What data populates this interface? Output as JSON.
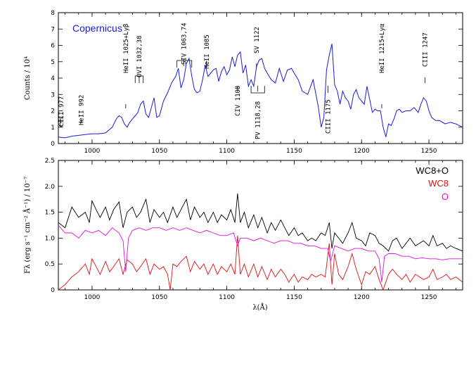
{
  "chart_data": [
    {
      "type": "line",
      "title": "",
      "panel_label": "Copernicus",
      "ylabel": "Counts / 10⁴",
      "xlabel": "",
      "xlim": [
        975,
        1275
      ],
      "ylim": [
        0,
        8
      ],
      "x_ticks": [
        1000,
        1050,
        1100,
        1150,
        1200,
        1250
      ],
      "y_ticks": [
        0,
        1,
        2,
        3,
        4,
        5,
        6,
        7,
        8
      ],
      "x_tick_labels": [
        "1000",
        "1050",
        "1100",
        "1150",
        "1200",
        "1250"
      ],
      "y_tick_labels": [
        "0",
        "1",
        "2",
        "3",
        "4",
        "5",
        "6",
        "7",
        "8"
      ],
      "colors": {
        "series": "#1a1adf",
        "label": "#1a1adf"
      },
      "series": [
        {
          "color": "#1a1adf",
          "x": [
            975,
            980,
            985,
            990,
            995,
            1000,
            1005,
            1010,
            1015,
            1018,
            1020,
            1022,
            1024,
            1026,
            1028,
            1030,
            1032,
            1034,
            1036,
            1038,
            1040,
            1042,
            1044,
            1046,
            1048,
            1050,
            1053,
            1056,
            1059,
            1062,
            1064,
            1066,
            1068,
            1070,
            1072,
            1074,
            1076,
            1078,
            1080,
            1082,
            1084,
            1086,
            1088,
            1090,
            1092,
            1094,
            1096,
            1098,
            1100,
            1102,
            1104,
            1106,
            1108,
            1110,
            1112,
            1114,
            1116,
            1118,
            1120,
            1122,
            1124,
            1126,
            1128,
            1130,
            1133,
            1136,
            1139,
            1142,
            1145,
            1148,
            1150,
            1153,
            1156,
            1160,
            1164,
            1168,
            1170,
            1172,
            1174,
            1176,
            1178,
            1180,
            1182,
            1184,
            1186,
            1188,
            1190,
            1192,
            1194,
            1196,
            1198,
            1200,
            1202,
            1204,
            1206,
            1208,
            1210,
            1212,
            1214,
            1216,
            1218,
            1220,
            1222,
            1224,
            1226,
            1228,
            1230,
            1233,
            1236,
            1239,
            1242,
            1244,
            1246,
            1248,
            1250,
            1252,
            1255,
            1258,
            1262,
            1266,
            1270,
            1275
          ],
          "y": [
            0.4,
            0.35,
            0.45,
            0.5,
            0.55,
            0.6,
            0.6,
            0.65,
            1.0,
            1.5,
            1.7,
            1.6,
            1.2,
            1.0,
            1.3,
            1.5,
            1.7,
            1.9,
            2.4,
            2.6,
            1.8,
            1.6,
            2.2,
            2.8,
            1.6,
            1.7,
            2.6,
            3.1,
            3.7,
            4.1,
            4.6,
            3.4,
            3.9,
            4.9,
            5.2,
            4.1,
            3.3,
            3.1,
            3.2,
            3.9,
            4.8,
            4.1,
            4.3,
            4.5,
            4.6,
            3.8,
            4.4,
            4.7,
            4.2,
            4.5,
            5.3,
            4.7,
            5.4,
            5.6,
            4.3,
            4.8,
            3.5,
            3.9,
            3.5,
            4.7,
            5.1,
            5.2,
            4.6,
            4.3,
            3.9,
            3.7,
            4.6,
            3.8,
            4.5,
            4.6,
            4.3,
            3.9,
            3.2,
            3.0,
            3.9,
            2.2,
            1.0,
            1.6,
            4.5,
            5.4,
            6.1,
            3.6,
            3.2,
            2.4,
            3.2,
            2.8,
            2.6,
            2.1,
            3.0,
            3.3,
            2.8,
            2.6,
            2.4,
            3.5,
            2.7,
            1.9,
            2.1,
            2.0,
            2.0,
            1.0,
            0.4,
            1.2,
            1.1,
            1.5,
            2.0,
            2.1,
            1.9,
            2.0,
            2.0,
            2.2,
            1.9,
            2.4,
            2.8,
            2.6,
            2.0,
            1.6,
            1.4,
            1.4,
            1.2,
            1.3,
            1.2,
            1.0
          ]
        }
      ],
      "annotations": [
        {
          "text": "CIII 977",
          "x": 977
        },
        {
          "text": "HeII 992",
          "x": 992
        },
        {
          "text": "HeII 1025+Lyβ",
          "x": 1025
        },
        {
          "text": "OVI 1032,38",
          "x": 1035
        },
        {
          "text": "SIV 1063,74",
          "x": 1068
        },
        {
          "text": "HeII 1085",
          "x": 1085
        },
        {
          "text": "CIV 1108",
          "x": 1108
        },
        {
          "text": "SV 1122",
          "x": 1122
        },
        {
          "text": "PV 1118,28",
          "x": 1123
        },
        {
          "text": "CIII 1175",
          "x": 1175
        },
        {
          "text": "HeII 1215+Lyα",
          "x": 1215
        },
        {
          "text": "CIII 1247",
          "x": 1247
        }
      ]
    },
    {
      "type": "line",
      "title": "",
      "ylabel": "Fλ (erg s⁻¹ cm⁻² Å⁻¹) / 10⁻⁷",
      "xlabel": "λ(Å)",
      "xlim": [
        975,
        1275
      ],
      "ylim": [
        0,
        2.5
      ],
      "x_ticks": [
        1000,
        1050,
        1100,
        1150,
        1200,
        1250
      ],
      "y_ticks": [
        0,
        0.5,
        1.0,
        1.5,
        2.0,
        2.5
      ],
      "x_tick_labels": [
        "1000",
        "1050",
        "1100",
        "1150",
        "1200",
        "1250"
      ],
      "y_tick_labels": [
        "0",
        "0.5",
        "1.0",
        "1.5",
        "2.0",
        "2.5"
      ],
      "legend": "top-right",
      "series": [
        {
          "name": "WC8+O",
          "color": "#000000",
          "x": [
            975,
            980,
            985,
            990,
            995,
            998,
            1000,
            1003,
            1006,
            1010,
            1013,
            1016,
            1020,
            1023,
            1026,
            1030,
            1033,
            1036,
            1040,
            1043,
            1046,
            1050,
            1053,
            1056,
            1060,
            1063,
            1066,
            1070,
            1073,
            1076,
            1080,
            1083,
            1086,
            1090,
            1093,
            1096,
            1100,
            1103,
            1106,
            1108,
            1110,
            1113,
            1116,
            1120,
            1123,
            1126,
            1130,
            1133,
            1136,
            1140,
            1143,
            1146,
            1150,
            1153,
            1156,
            1160,
            1163,
            1166,
            1170,
            1173,
            1176,
            1178,
            1180,
            1183,
            1186,
            1190,
            1193,
            1196,
            1200,
            1203,
            1206,
            1210,
            1213,
            1216,
            1220,
            1223,
            1226,
            1230,
            1233,
            1236,
            1240,
            1243,
            1246,
            1250,
            1253,
            1256,
            1260,
            1263,
            1266,
            1270,
            1275
          ],
          "y": [
            1.3,
            1.2,
            1.6,
            1.4,
            1.5,
            1.3,
            1.72,
            1.55,
            1.4,
            1.6,
            1.35,
            1.55,
            1.7,
            1.2,
            1.5,
            1.6,
            1.4,
            1.5,
            1.75,
            1.3,
            1.55,
            1.4,
            1.5,
            1.3,
            1.6,
            1.4,
            1.55,
            1.75,
            1.35,
            1.6,
            1.4,
            1.5,
            1.3,
            1.5,
            1.3,
            1.45,
            1.35,
            1.55,
            1.3,
            1.86,
            1.3,
            1.5,
            1.2,
            1.45,
            1.2,
            1.4,
            1.1,
            1.3,
            1.15,
            1.35,
            1.2,
            1.05,
            1.2,
            1.05,
            1.1,
            0.95,
            1.0,
            0.95,
            1.1,
            1.05,
            1.3,
            0.8,
            1.1,
            1.0,
            0.9,
            1.1,
            1.3,
            1.0,
            0.95,
            0.85,
            1.1,
            1.05,
            0.9,
            0.85,
            0.75,
            0.95,
            1.0,
            0.8,
            0.9,
            1.0,
            0.85,
            0.9,
            0.95,
            0.85,
            1.05,
            0.85,
            0.9,
            0.8,
            0.85,
            0.8,
            0.75
          ]
        },
        {
          "name": "WC8",
          "color": "#e01010",
          "x": [
            975,
            980,
            985,
            990,
            995,
            998,
            1000,
            1003,
            1006,
            1010,
            1013,
            1016,
            1020,
            1023,
            1026,
            1030,
            1033,
            1036,
            1040,
            1043,
            1046,
            1050,
            1053,
            1056,
            1058,
            1060,
            1063,
            1066,
            1070,
            1073,
            1076,
            1080,
            1083,
            1086,
            1090,
            1093,
            1096,
            1100,
            1103,
            1106,
            1108,
            1110,
            1113,
            1116,
            1120,
            1123,
            1126,
            1130,
            1133,
            1136,
            1140,
            1143,
            1146,
            1150,
            1153,
            1156,
            1160,
            1163,
            1166,
            1170,
            1173,
            1176,
            1178,
            1180,
            1183,
            1186,
            1190,
            1193,
            1196,
            1200,
            1203,
            1206,
            1210,
            1213,
            1216,
            1220,
            1223,
            1226,
            1230,
            1233,
            1236,
            1240,
            1243,
            1246,
            1250,
            1253,
            1256,
            1260,
            1263,
            1266,
            1270,
            1275
          ],
          "y": [
            0.0,
            0.1,
            0.25,
            0.35,
            0.5,
            0.3,
            0.6,
            0.45,
            0.3,
            0.55,
            0.35,
            0.45,
            0.6,
            0.3,
            0.58,
            0.5,
            0.35,
            0.45,
            0.6,
            0.3,
            0.5,
            0.4,
            0.45,
            0.3,
            0.0,
            0.5,
            0.45,
            0.55,
            0.65,
            0.35,
            0.55,
            0.4,
            0.5,
            0.3,
            0.5,
            0.3,
            0.45,
            0.35,
            0.5,
            0.3,
            1.05,
            0.3,
            0.5,
            0.25,
            0.5,
            0.25,
            0.45,
            0.2,
            0.4,
            0.25,
            0.4,
            0.3,
            0.15,
            0.3,
            0.15,
            0.25,
            0.2,
            0.3,
            0.25,
            0.3,
            0.25,
            0.9,
            0.1,
            0.7,
            0.3,
            0.2,
            0.45,
            0.7,
            0.4,
            0.1,
            0.35,
            0.3,
            0.45,
            0.2,
            0.0,
            0.3,
            0.4,
            0.3,
            0.2,
            0.3,
            0.15,
            0.3,
            0.25,
            0.2,
            0.25,
            0.4,
            0.2,
            0.25,
            0.3,
            0.2,
            0.25,
            0.15
          ]
        },
        {
          "name": "O",
          "color": "#e010e0",
          "x": [
            975,
            980,
            985,
            990,
            995,
            1000,
            1005,
            1010,
            1015,
            1020,
            1023,
            1025,
            1027,
            1030,
            1035,
            1040,
            1045,
            1050,
            1055,
            1060,
            1065,
            1070,
            1075,
            1080,
            1085,
            1090,
            1095,
            1100,
            1105,
            1108,
            1110,
            1115,
            1120,
            1125,
            1130,
            1135,
            1140,
            1145,
            1150,
            1155,
            1160,
            1165,
            1170,
            1175,
            1177,
            1180,
            1185,
            1190,
            1195,
            1200,
            1205,
            1210,
            1213,
            1215,
            1217,
            1220,
            1225,
            1230,
            1235,
            1240,
            1245,
            1250,
            1255,
            1260,
            1265,
            1270,
            1275
          ],
          "y": [
            1.25,
            1.1,
            1.1,
            1.0,
            1.15,
            1.1,
            1.15,
            1.05,
            1.2,
            1.1,
            0.95,
            0.35,
            1.0,
            1.15,
            1.2,
            1.15,
            1.2,
            1.2,
            1.15,
            1.2,
            1.15,
            1.2,
            1.15,
            1.1,
            1.15,
            1.1,
            1.05,
            1.05,
            1.1,
            0.85,
            1.0,
            1.0,
            0.95,
            1.0,
            0.95,
            0.9,
            0.95,
            0.95,
            0.9,
            0.9,
            0.85,
            0.85,
            0.8,
            0.8,
            0.55,
            0.85,
            0.8,
            0.75,
            0.8,
            0.8,
            0.75,
            0.75,
            0.6,
            0.15,
            0.65,
            0.7,
            0.7,
            0.65,
            0.65,
            0.6,
            0.62,
            0.6,
            0.6,
            0.58,
            0.6,
            0.6,
            0.6
          ]
        }
      ]
    }
  ]
}
